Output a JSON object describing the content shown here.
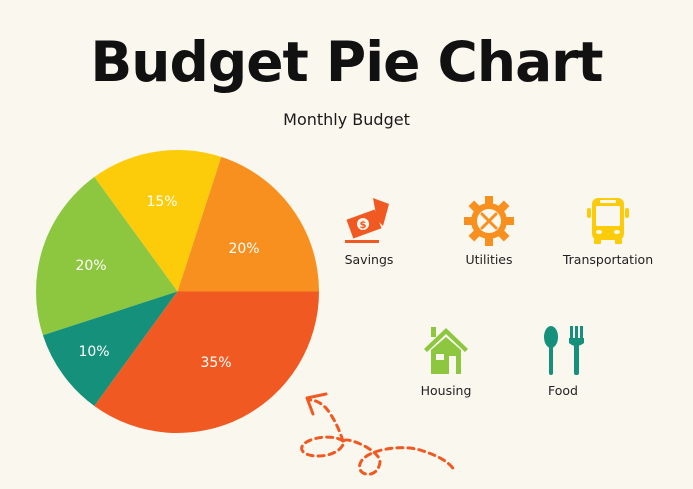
{
  "header": {
    "title": "Budget Pie Chart",
    "subtitle": "Monthly Budget"
  },
  "colors": {
    "background": "#FAF7EF",
    "orange": "#F7901E",
    "yellow": "#FCCC0A",
    "green": "#8DC63F",
    "teal": "#15907A",
    "red_orange": "#F05A22"
  },
  "chart_data": {
    "type": "pie",
    "title": "Budget Pie Chart",
    "subtitle": "Monthly Budget",
    "slices": [
      {
        "label": "20%",
        "value": 20,
        "color": "#F7901E"
      },
      {
        "label": "15%",
        "value": 15,
        "color": "#FCCC0A"
      },
      {
        "label": "20%",
        "value": 20,
        "color": "#8DC63F"
      },
      {
        "label": "10%",
        "value": 10,
        "color": "#15907A"
      },
      {
        "label": "35%",
        "value": 35,
        "color": "#F05A22"
      }
    ],
    "legend": [
      "Savings",
      "Utilities",
      "Transportation",
      "Housing",
      "Food"
    ],
    "legend_position": "right (icon legend)"
  },
  "legend": [
    {
      "name": "Savings",
      "icon": "money-hand-icon",
      "color": "#F05A22"
    },
    {
      "name": "Utilities",
      "icon": "gear-tools-icon",
      "color": "#F7901E"
    },
    {
      "name": "Transportation",
      "icon": "bus-icon",
      "color": "#FCCC0A"
    },
    {
      "name": "Housing",
      "icon": "house-icon",
      "color": "#8DC63F"
    },
    {
      "name": "Food",
      "icon": "spoon-fork-icon",
      "color": "#15907A"
    }
  ]
}
